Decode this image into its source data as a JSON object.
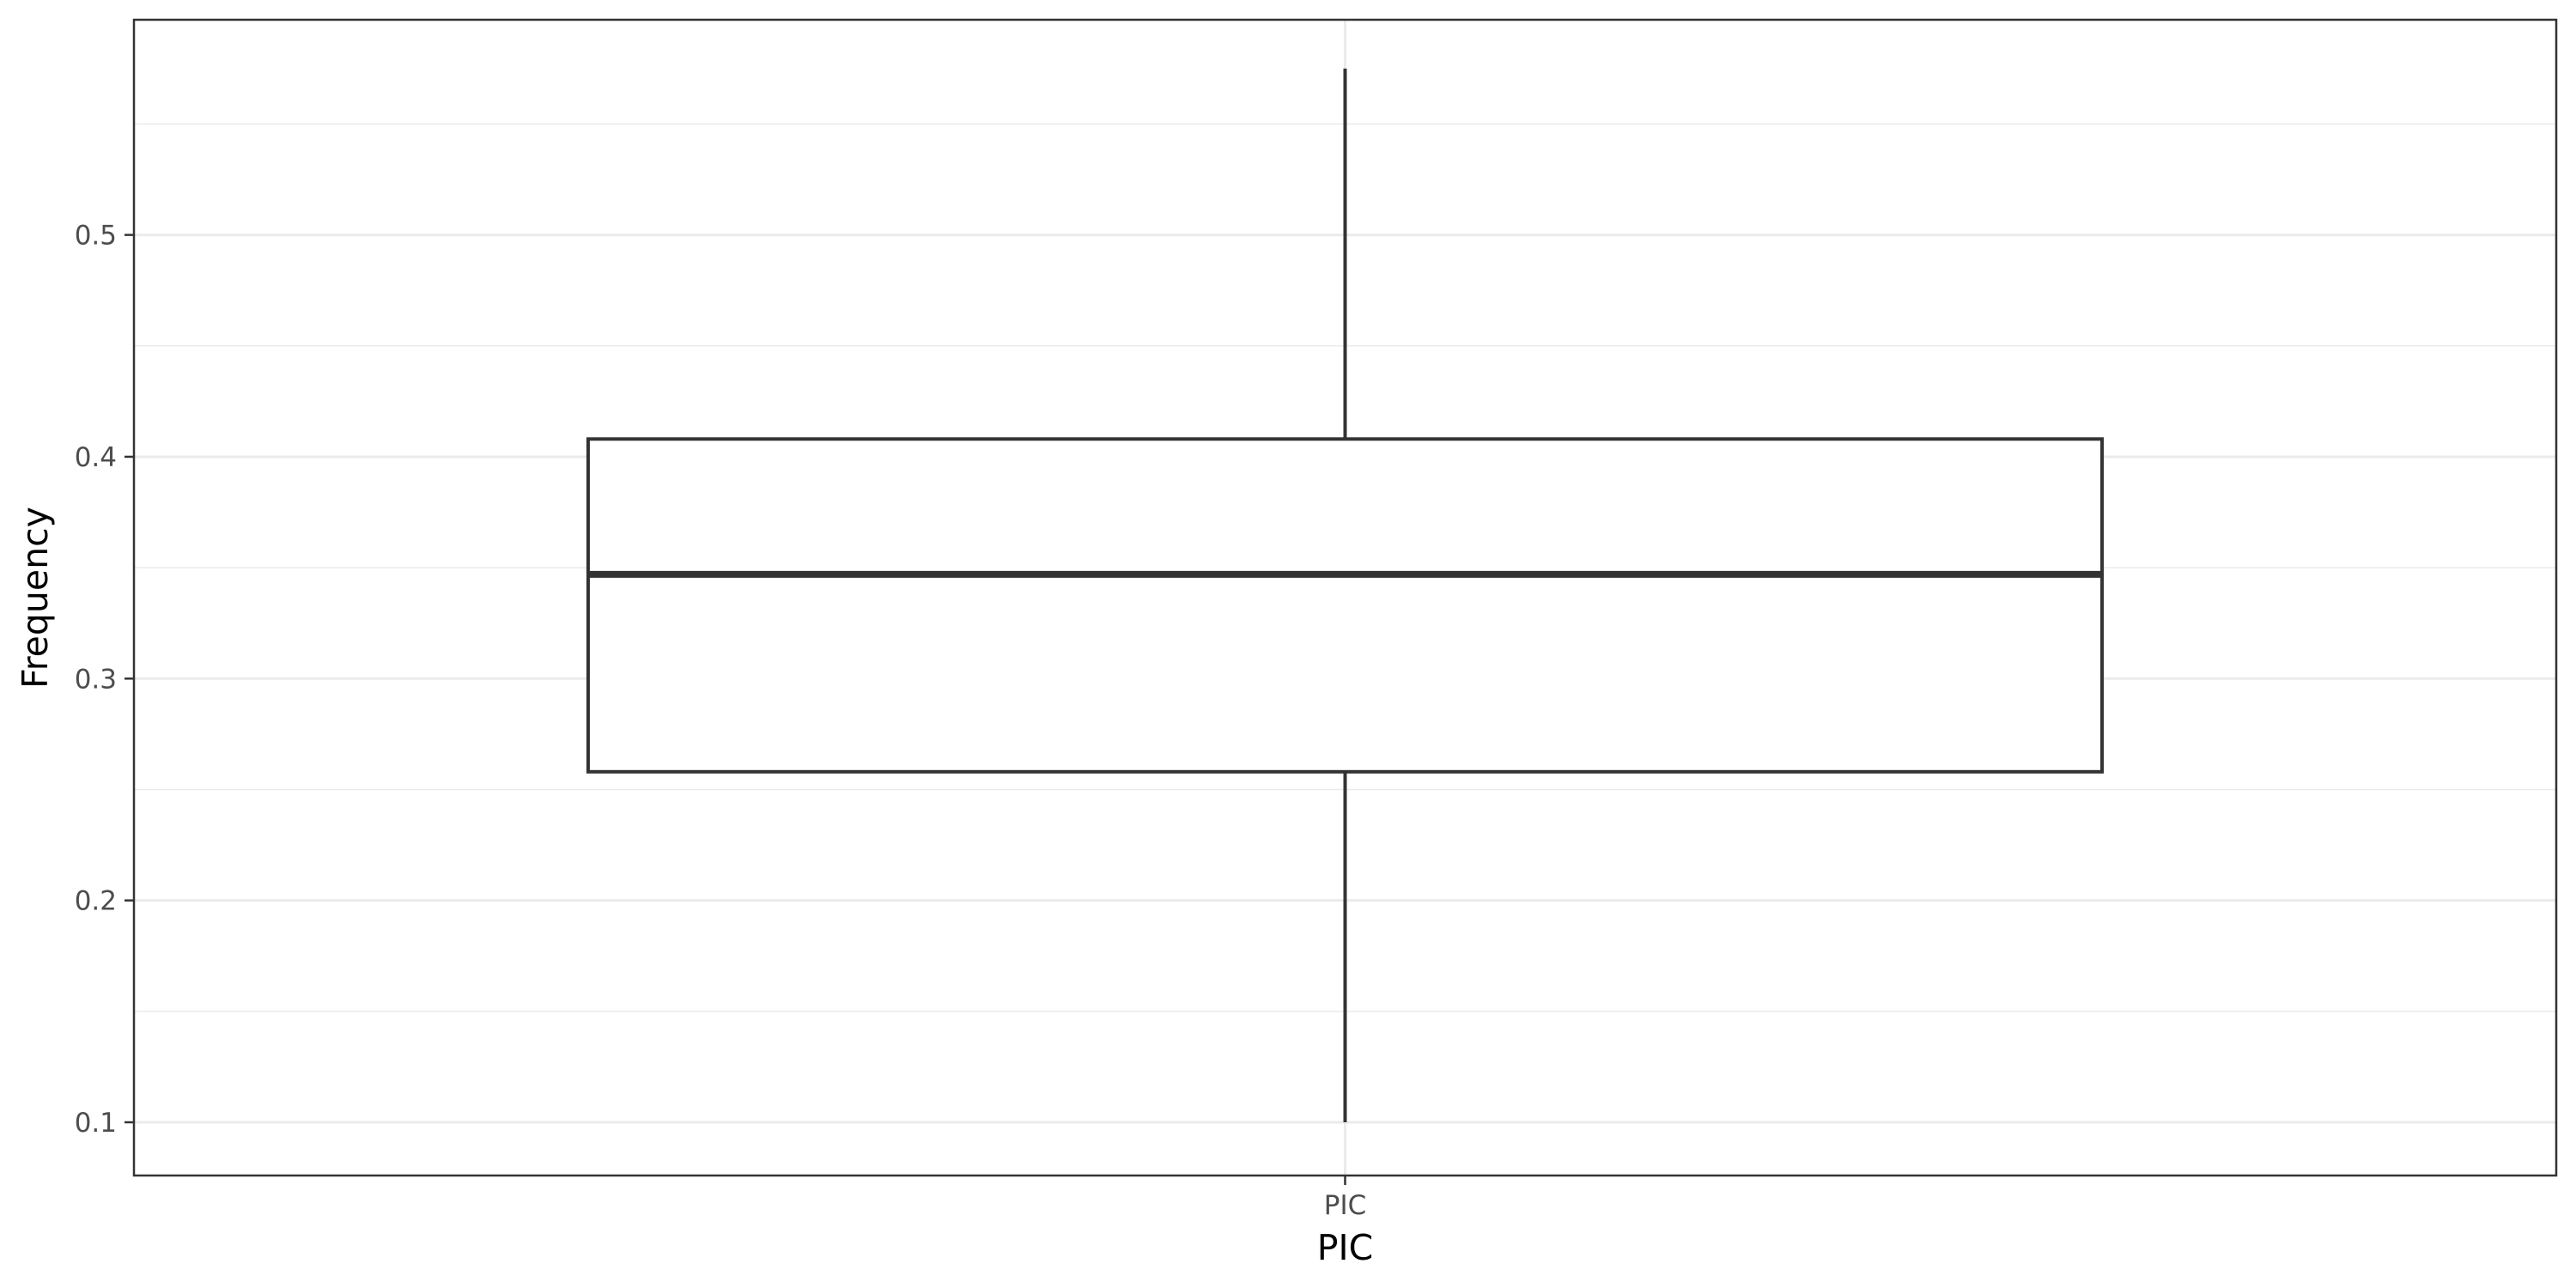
{
  "chart_data": {
    "type": "boxplot",
    "title": "",
    "xlabel": "PIC",
    "ylabel": "Frequency",
    "categories": [
      "PIC"
    ],
    "boxes": [
      {
        "category": "PIC",
        "whisker_low": 0.1,
        "q1": 0.258,
        "median": 0.347,
        "q3": 0.408,
        "whisker_high": 0.575
      }
    ],
    "ylim": [
      0.076,
      0.597
    ],
    "yticks": [
      0.1,
      0.2,
      0.3,
      0.4,
      0.5
    ],
    "ytick_labels": [
      "0.1",
      "0.2",
      "0.3",
      "0.4",
      "0.5"
    ],
    "grid": true,
    "legend": "none"
  }
}
